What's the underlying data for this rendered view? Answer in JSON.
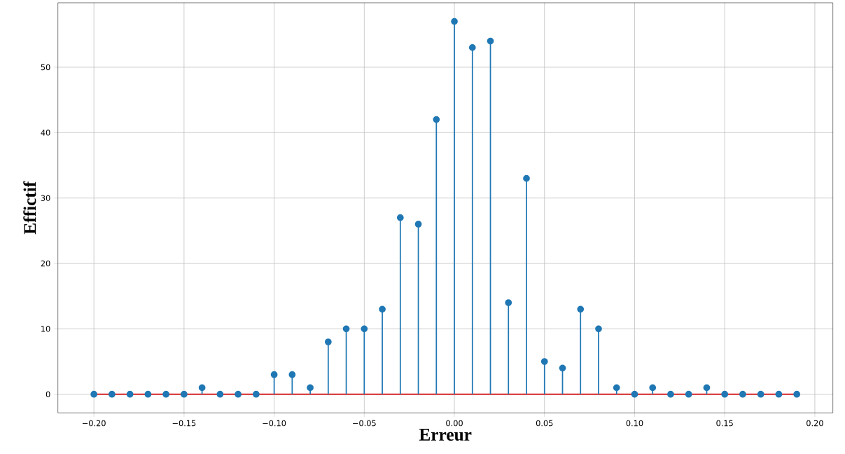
{
  "chart_data": {
    "type": "lollipop",
    "xlabel": "Erreur",
    "ylabel": "Effictif",
    "x": [
      -0.2,
      -0.19,
      -0.18,
      -0.17,
      -0.16,
      -0.15,
      -0.14,
      -0.13,
      -0.12,
      -0.11,
      -0.1,
      -0.09,
      -0.08,
      -0.07,
      -0.06,
      -0.05,
      -0.04,
      -0.03,
      -0.02,
      -0.01,
      0.0,
      0.01,
      0.02,
      0.03,
      0.04,
      0.05,
      0.06,
      0.07,
      0.08,
      0.09,
      0.1,
      0.11,
      0.12,
      0.13,
      0.14,
      0.15,
      0.16,
      0.17,
      0.18,
      0.19
    ],
    "series": [
      {
        "color": "#1f77b4",
        "values": [
          0,
          0,
          0,
          0,
          0,
          0,
          1,
          0,
          0,
          0,
          3,
          3,
          1,
          8,
          10,
          10,
          13,
          27,
          26,
          42,
          57,
          53,
          54,
          14,
          33,
          5,
          4,
          13,
          10,
          1,
          0,
          1,
          0,
          0,
          1,
          0,
          0,
          0,
          0,
          0
        ]
      }
    ],
    "ref_lines": [
      {
        "axis": "y",
        "value": 0,
        "color": "#d62728"
      }
    ],
    "xlim": [
      -0.22,
      0.21
    ],
    "ylim": [
      -2.85,
      59.85
    ],
    "xticks": [
      {
        "value": -0.2,
        "label": "−0.20"
      },
      {
        "value": -0.15,
        "label": "−0.15"
      },
      {
        "value": -0.1,
        "label": "−0.10"
      },
      {
        "value": -0.05,
        "label": "−0.05"
      },
      {
        "value": 0.0,
        "label": "0.00"
      },
      {
        "value": 0.05,
        "label": "0.05"
      },
      {
        "value": 0.1,
        "label": "0.10"
      },
      {
        "value": 0.15,
        "label": "0.15"
      },
      {
        "value": 0.2,
        "label": "0.20"
      }
    ],
    "yticks": [
      0,
      10,
      20,
      30,
      40,
      50
    ],
    "grid": true,
    "marker": "circle"
  }
}
